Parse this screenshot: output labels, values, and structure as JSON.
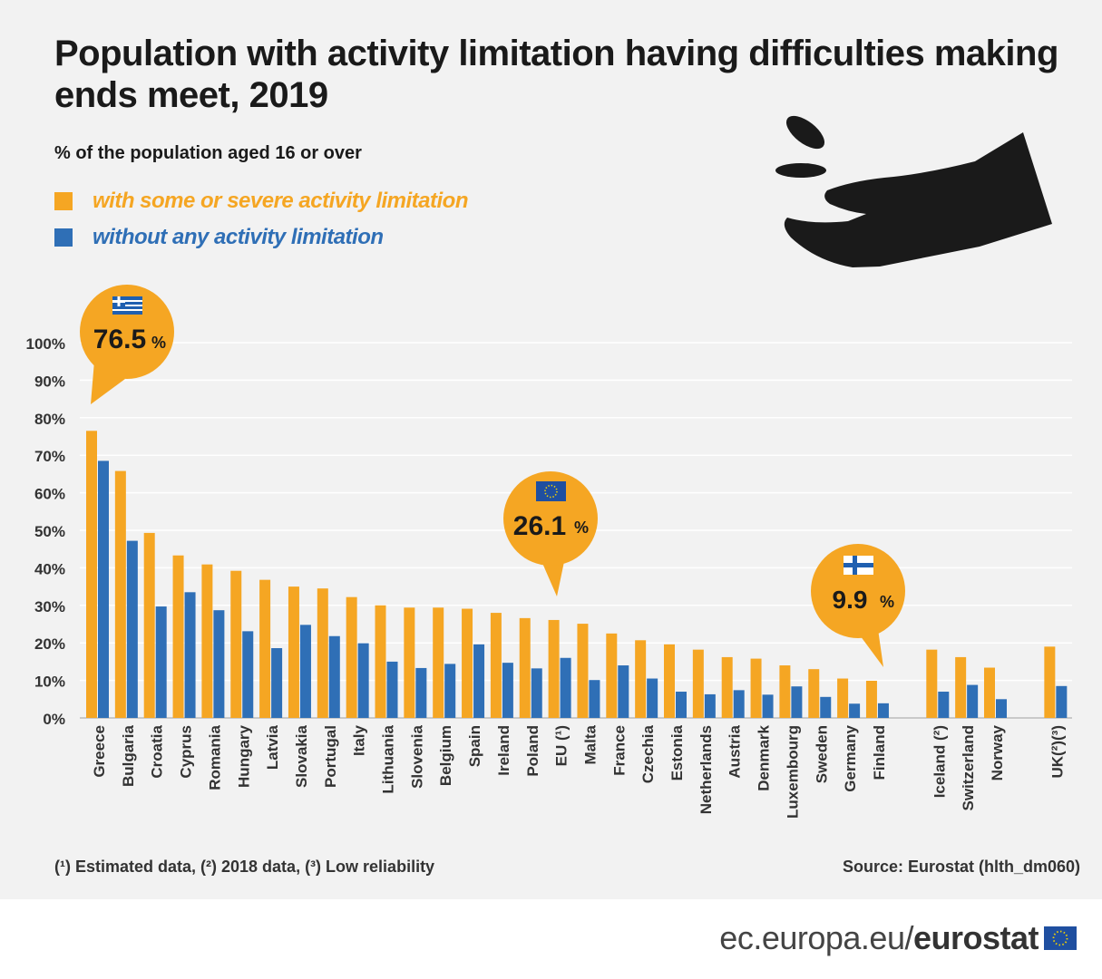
{
  "header": {
    "title": "Population with activity limitation having difficulties making ends meet, 2019",
    "subtitle": "% of the population aged 16 or over"
  },
  "legend": {
    "limitation_label": "with some or severe activity limitation",
    "no_limitation_label": "without any activity limitation"
  },
  "colors": {
    "limitation": "#f5a623",
    "no_limitation": "#2f6fb6",
    "background": "#f2f2f2",
    "text": "#1a1a1a"
  },
  "callouts": {
    "greece": {
      "value": "76.5",
      "unit": "%",
      "flag": "greece-flag-icon"
    },
    "eu": {
      "value": "26.1",
      "unit": "%",
      "flag": "eu-flag-icon"
    },
    "finland": {
      "value": "9.9",
      "unit": "%",
      "flag": "finland-flag-icon"
    }
  },
  "footer": {
    "footnote": "(¹) Estimated data, (²) 2018 data, (³) Low reliability",
    "source": "Source: Eurostat (hlth_dm060)",
    "site_prefix": "ec.europa.eu/",
    "site_brand": "eurostat"
  },
  "icons": {
    "hand": "hand-receiving-coins-icon"
  },
  "chart_data": {
    "type": "bar",
    "title": "Population with activity limitation having difficulties making ends meet, 2019",
    "ylabel": "% of the population aged 16 or over",
    "xlabel": "",
    "ylim": [
      0,
      100
    ],
    "yticks": [
      "0%",
      "10%",
      "20%",
      "30%",
      "40%",
      "50%",
      "60%",
      "70%",
      "80%",
      "90%",
      "100%"
    ],
    "grid": true,
    "categories": [
      "Greece",
      "Bulgaria",
      "Croatia",
      "Cyprus",
      "Romania",
      "Hungary",
      "Latvia",
      "Slovakia",
      "Portugal",
      "Italy",
      "Lithuania",
      "Slovenia",
      "Belgium",
      "Spain",
      "Ireland",
      "Poland",
      "EU (¹)",
      "Malta",
      "France",
      "Czechia",
      "Estonia",
      "Netherlands",
      "Austria",
      "Denmark",
      "Luxembourg",
      "Sweden",
      "Germany",
      "Finland",
      "Iceland (²)",
      "Switzerland",
      "Norway",
      "UK(²)(³)"
    ],
    "groups_after_index": [
      27,
      30
    ],
    "series": [
      {
        "name": "with some or severe activity limitation",
        "values": [
          76.5,
          65.8,
          49.3,
          43.3,
          40.9,
          39.2,
          36.8,
          35.0,
          34.5,
          32.2,
          30.0,
          29.4,
          29.4,
          29.1,
          28.0,
          26.6,
          26.1,
          25.1,
          22.5,
          20.7,
          19.6,
          18.2,
          16.2,
          15.8,
          14.0,
          13.0,
          10.5,
          9.9,
          18.2,
          16.2,
          13.4,
          19.0
        ]
      },
      {
        "name": "without any activity limitation",
        "values": [
          68.5,
          47.2,
          29.7,
          33.5,
          28.7,
          23.1,
          18.6,
          24.8,
          21.8,
          19.9,
          15.0,
          13.3,
          14.4,
          19.6,
          14.7,
          13.2,
          16.0,
          10.1,
          14.0,
          10.5,
          7.0,
          6.3,
          7.4,
          6.2,
          8.4,
          5.6,
          3.8,
          3.9,
          7.0,
          8.8,
          5.0,
          8.5
        ]
      }
    ]
  }
}
